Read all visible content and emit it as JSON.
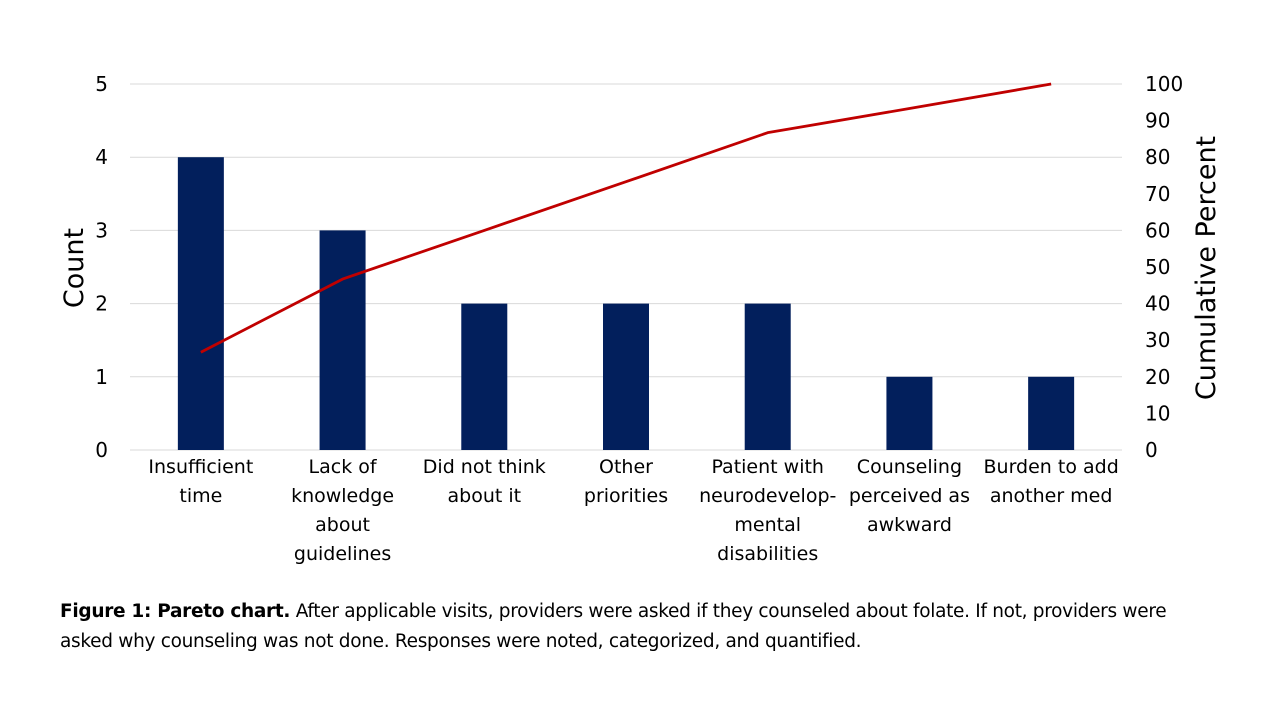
{
  "chart_data": {
    "type": "bar",
    "title": "",
    "categories": [
      [
        "Insufficient",
        "time"
      ],
      [
        "Lack of",
        "knowledge",
        "about",
        "guidelines"
      ],
      [
        "Did not think",
        "about it"
      ],
      [
        "Other",
        "priorities"
      ],
      [
        "Patient with",
        "neurodevelop-",
        "mental",
        "disabilities"
      ],
      [
        "Counseling",
        "perceived as",
        "awkward"
      ],
      [
        "Burden to add",
        "another med"
      ]
    ],
    "series": [
      {
        "name": "Count",
        "type": "bar",
        "axis": "left",
        "color": "#021F5C",
        "values": [
          4,
          3,
          2,
          2,
          2,
          1,
          1
        ]
      },
      {
        "name": "Cumulative Percent",
        "type": "line",
        "axis": "right",
        "color": "#C00000",
        "values": [
          26.7,
          46.7,
          60.0,
          73.3,
          86.7,
          93.3,
          100.0
        ]
      }
    ],
    "ylabel": "Count",
    "ylim": [
      0,
      5
    ],
    "yticks": [
      0,
      1,
      2,
      3,
      4,
      5
    ],
    "y2label": "Cumulative Percent",
    "y2lim": [
      0,
      100
    ],
    "y2ticks": [
      0,
      10,
      20,
      30,
      40,
      50,
      60,
      70,
      80,
      90,
      100
    ],
    "grid": true,
    "legend": "none"
  },
  "caption": {
    "bold": "Figure 1: Pareto chart.",
    "text": " After applicable visits, providers were asked if they counseled about folate. If not, providers were asked why counseling was not done. Responses were noted, categorized, and quantified."
  }
}
